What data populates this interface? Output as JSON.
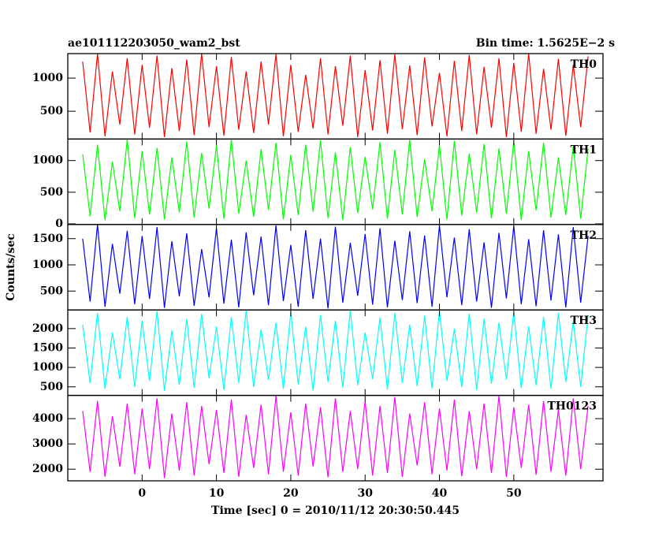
{
  "figure": {
    "title": "ae101112203050_wam2_bst",
    "subtitle": "Bin time: 1.5625E−2 s",
    "ylabel": "Counts/sec"
  },
  "chart_data": [
    {
      "type": "line",
      "x": [
        -8,
        -7,
        -6,
        -5,
        -4,
        -3,
        -2,
        -1,
        0,
        1,
        2,
        3,
        4,
        5,
        6,
        7,
        8,
        9,
        10,
        11,
        12,
        13,
        14,
        15,
        16,
        17,
        18,
        19,
        20,
        21,
        22,
        23,
        24,
        25,
        26,
        27,
        28,
        29,
        30,
        31,
        32,
        33,
        34,
        35,
        36,
        37,
        38,
        39,
        40,
        41,
        42,
        43,
        44,
        45,
        46,
        47,
        48,
        49,
        50,
        51,
        52,
        53,
        54,
        55,
        56,
        57,
        58,
        59,
        60
      ],
      "series": [
        {
          "name": "TH0",
          "color": "#ff0000",
          "values": [
            1250,
            180,
            1370,
            120,
            1100,
            300,
            1300,
            150,
            1200,
            250,
            1340,
            110,
            1150,
            200,
            1280,
            140,
            1370,
            260,
            1180,
            130,
            1320,
            220,
            1100,
            170,
            1250,
            300,
            1360,
            120,
            1200,
            190,
            1050,
            240,
            1300,
            150,
            1180,
            280,
            1340,
            110,
            1120,
            210,
            1270,
            160,
            1360,
            230,
            1190,
            140,
            1310,
            270,
            1080,
            120,
            1260,
            200,
            1350,
            150,
            1170,
            250,
            1300,
            110,
            1230,
            190,
            1370,
            160,
            1140,
            220,
            1290,
            130,
            1200,
            260,
            1330
          ]
        }
      ],
      "xlim": [
        -10,
        62
      ],
      "ylim": [
        80,
        1370
      ],
      "yticks": [
        500,
        1000
      ]
    },
    {
      "type": "line",
      "x": [
        -8,
        -7,
        -6,
        -5,
        -4,
        -3,
        -2,
        -1,
        0,
        1,
        2,
        3,
        4,
        5,
        6,
        7,
        8,
        9,
        10,
        11,
        12,
        13,
        14,
        15,
        16,
        17,
        18,
        19,
        20,
        21,
        22,
        23,
        24,
        25,
        26,
        27,
        28,
        29,
        30,
        31,
        32,
        33,
        34,
        35,
        36,
        37,
        38,
        39,
        40,
        41,
        42,
        43,
        44,
        45,
        46,
        47,
        48,
        49,
        50,
        51,
        52,
        53,
        54,
        55,
        56,
        57,
        58,
        59,
        60
      ],
      "series": [
        {
          "name": "TH1",
          "color": "#00ff00",
          "values": [
            1100,
            120,
            1250,
            60,
            980,
            200,
            1330,
            90,
            1150,
            150,
            1200,
            70,
            1050,
            180,
            1300,
            100,
            1120,
            240,
            1240,
            80,
            1330,
            160,
            1000,
            110,
            1180,
            220,
            1280,
            70,
            1090,
            140,
            1250,
            190,
            1320,
            90,
            1130,
            60,
            1210,
            170,
            1060,
            230,
            1290,
            80,
            1170,
            150,
            1330,
            110,
            1020,
            200,
            1240,
            70,
            1310,
            130,
            1110,
            180,
            1260,
            90,
            1190,
            160,
            1300,
            60,
            1150,
            210,
            1280,
            100,
            1050,
            140,
            1230,
            80,
            1190
          ]
        }
      ],
      "xlim": [
        -10,
        62
      ],
      "ylim": [
        -10,
        1340
      ],
      "yticks": [
        0,
        500,
        1000
      ]
    },
    {
      "type": "line",
      "x": [
        -8,
        -7,
        -6,
        -5,
        -4,
        -3,
        -2,
        -1,
        0,
        1,
        2,
        3,
        4,
        5,
        6,
        7,
        8,
        9,
        10,
        11,
        12,
        13,
        14,
        15,
        16,
        17,
        18,
        19,
        20,
        21,
        22,
        23,
        24,
        25,
        26,
        27,
        28,
        29,
        30,
        31,
        32,
        33,
        34,
        35,
        36,
        37,
        38,
        39,
        40,
        41,
        42,
        43,
        44,
        45,
        46,
        47,
        48,
        49,
        50,
        51,
        52,
        53,
        54,
        55,
        56,
        57,
        58,
        59,
        60
      ],
      "series": [
        {
          "name": "TH2",
          "color": "#0000ff",
          "values": [
            1500,
            300,
            1770,
            200,
            1400,
            450,
            1650,
            250,
            1550,
            350,
            1720,
            180,
            1450,
            400,
            1600,
            220,
            1300,
            380,
            1700,
            260,
            1480,
            190,
            1620,
            420,
            1540,
            230,
            1750,
            310,
            1380,
            200,
            1660,
            350,
            1500,
            170,
            1730,
            280,
            1420,
            410,
            1590,
            240,
            1700,
            190,
            1460,
            330,
            1640,
            270,
            1560,
            200,
            1750,
            380,
            1520,
            230,
            1680,
            300,
            1430,
            180,
            1610,
            360,
            1740,
            250,
            1490,
            210,
            1660,
            320,
            1580,
            190,
            1720,
            280,
            1550
          ]
        }
      ],
      "xlim": [
        -10,
        62
      ],
      "ylim": [
        140,
        1770
      ],
      "yticks": [
        500,
        1000,
        1500
      ]
    },
    {
      "type": "line",
      "x": [
        -8,
        -7,
        -6,
        -5,
        -4,
        -3,
        -2,
        -1,
        0,
        1,
        2,
        3,
        4,
        5,
        6,
        7,
        8,
        9,
        10,
        11,
        12,
        13,
        14,
        15,
        16,
        17,
        18,
        19,
        20,
        21,
        22,
        23,
        24,
        25,
        26,
        27,
        28,
        29,
        30,
        31,
        32,
        33,
        34,
        35,
        36,
        37,
        38,
        39,
        40,
        41,
        42,
        43,
        44,
        45,
        46,
        47,
        48,
        49,
        50,
        51,
        52,
        53,
        54,
        55,
        56,
        57,
        58,
        59,
        60
      ],
      "series": [
        {
          "name": "TH3",
          "color": "#00ffff",
          "values": [
            2100,
            600,
            2400,
            450,
            1900,
            700,
            2300,
            500,
            2200,
            650,
            2450,
            400,
            1950,
            550,
            2250,
            480,
            2380,
            720,
            2050,
            420,
            2300,
            600,
            2480,
            500,
            1980,
            680,
            2150,
            450,
            2420,
            560,
            2050,
            400,
            2350,
            620,
            2200,
            480,
            2470,
            540,
            1900,
            700,
            2280,
            430,
            2400,
            600,
            2100,
            520,
            2330,
            460,
            2450,
            650,
            2000,
            500,
            2380,
            420,
            2250,
            580,
            2150,
            690,
            2420,
            470,
            2060,
            540,
            2300,
            450,
            2400,
            620,
            2180,
            500,
            2350
          ]
        }
      ],
      "xlim": [
        -10,
        62
      ],
      "ylim": [
        280,
        2480
      ],
      "yticks": [
        500,
        1000,
        1500,
        2000
      ]
    },
    {
      "type": "line",
      "x": [
        -8,
        -7,
        -6,
        -5,
        -4,
        -3,
        -2,
        -1,
        0,
        1,
        2,
        3,
        4,
        5,
        6,
        7,
        8,
        9,
        10,
        11,
        12,
        13,
        14,
        15,
        16,
        17,
        18,
        19,
        20,
        21,
        22,
        23,
        24,
        25,
        26,
        27,
        28,
        29,
        30,
        31,
        32,
        33,
        34,
        35,
        36,
        37,
        38,
        39,
        40,
        41,
        42,
        43,
        44,
        45,
        46,
        47,
        48,
        49,
        50,
        51,
        52,
        53,
        54,
        55,
        56,
        57,
        58,
        59,
        60
      ],
      "series": [
        {
          "name": "TH0123",
          "color": "#ff00ff",
          "values": [
            4300,
            1900,
            4700,
            1700,
            4100,
            2100,
            4600,
            1800,
            4400,
            2000,
            4800,
            1650,
            4200,
            1950,
            4650,
            1750,
            4500,
            2200,
            4350,
            1850,
            4750,
            1700,
            4150,
            2050,
            4550,
            1800,
            4900,
            1900,
            4250,
            1750,
            4600,
            2100,
            4450,
            1680,
            4800,
            1900,
            4300,
            2000,
            4700,
            1750,
            4500,
            1850,
            4850,
            1700,
            4200,
            2150,
            4650,
            1800,
            4400,
            1950,
            4750,
            1720,
            4300,
            2000,
            4600,
            1850,
            4900,
            1700,
            4450,
            2050,
            4550,
            1780,
            4700,
            1900,
            4350,
            1750,
            4800,
            2000,
            4500
          ]
        }
      ],
      "xlim": [
        -10,
        62
      ],
      "ylim": [
        1540,
        4920
      ],
      "yticks": [
        2000,
        3000,
        4000
      ],
      "xticks": [
        0,
        10,
        20,
        30,
        40,
        50
      ],
      "xlabel": "Time [sec] 0 = 2010/11/12 20:30:50.445"
    }
  ]
}
